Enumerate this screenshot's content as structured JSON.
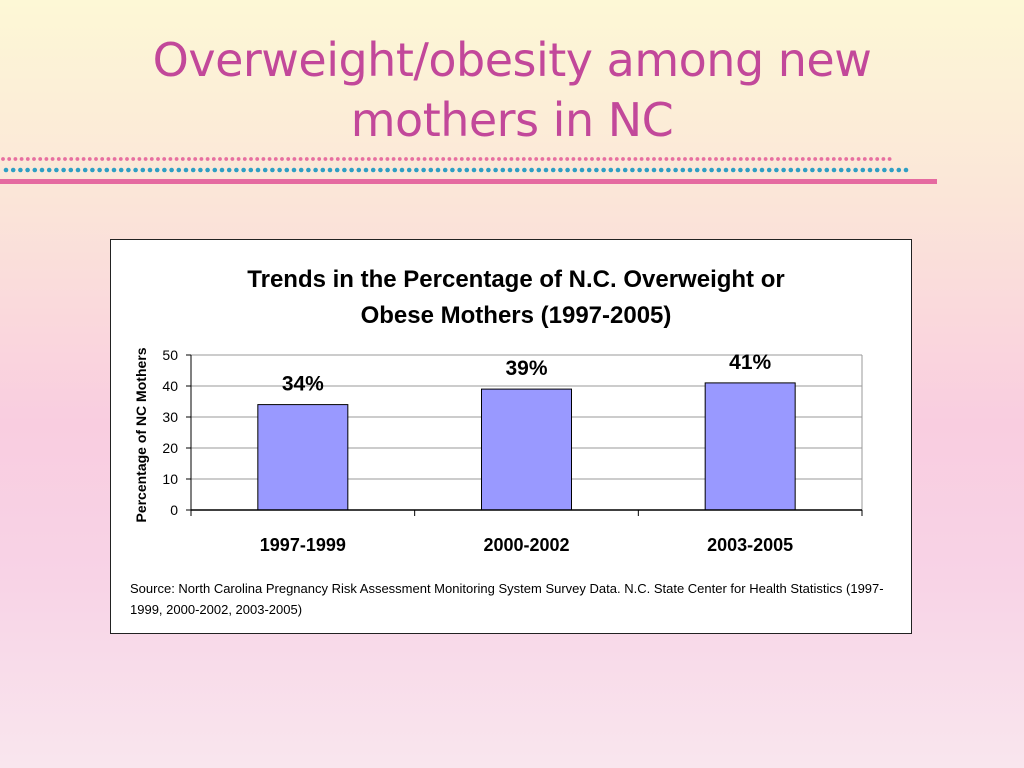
{
  "slide": {
    "title": "Overweight/obesity among new mothers in NC",
    "title_color": "#c2489a"
  },
  "decoration": {
    "dot_colors": [
      "#e76fa0",
      "#2f9fc4"
    ],
    "rule_color": "#e56aa0"
  },
  "chart_data": {
    "type": "bar",
    "title": "Trends in the Percentage of N.C. Overweight or Obese Mothers (1997-2005)",
    "xlabel": "",
    "ylabel": "Percentage of NC Mothers",
    "categories": [
      "1997-1999",
      "2000-2002",
      "2003-2005"
    ],
    "values": [
      34,
      39,
      41
    ],
    "data_labels": [
      "34%",
      "39%",
      "41%"
    ],
    "ylim": [
      0,
      50
    ],
    "yticks": [
      0,
      10,
      20,
      30,
      40,
      50
    ],
    "grid": true,
    "legend": "none",
    "bar_color": "#9999ff",
    "source": "Source: North Carolina Pregnancy Risk Assessment Monitoring System Survey Data. N.C. State Center for Health Statistics (1997-1999, 2000-2002, 2003-2005)"
  }
}
